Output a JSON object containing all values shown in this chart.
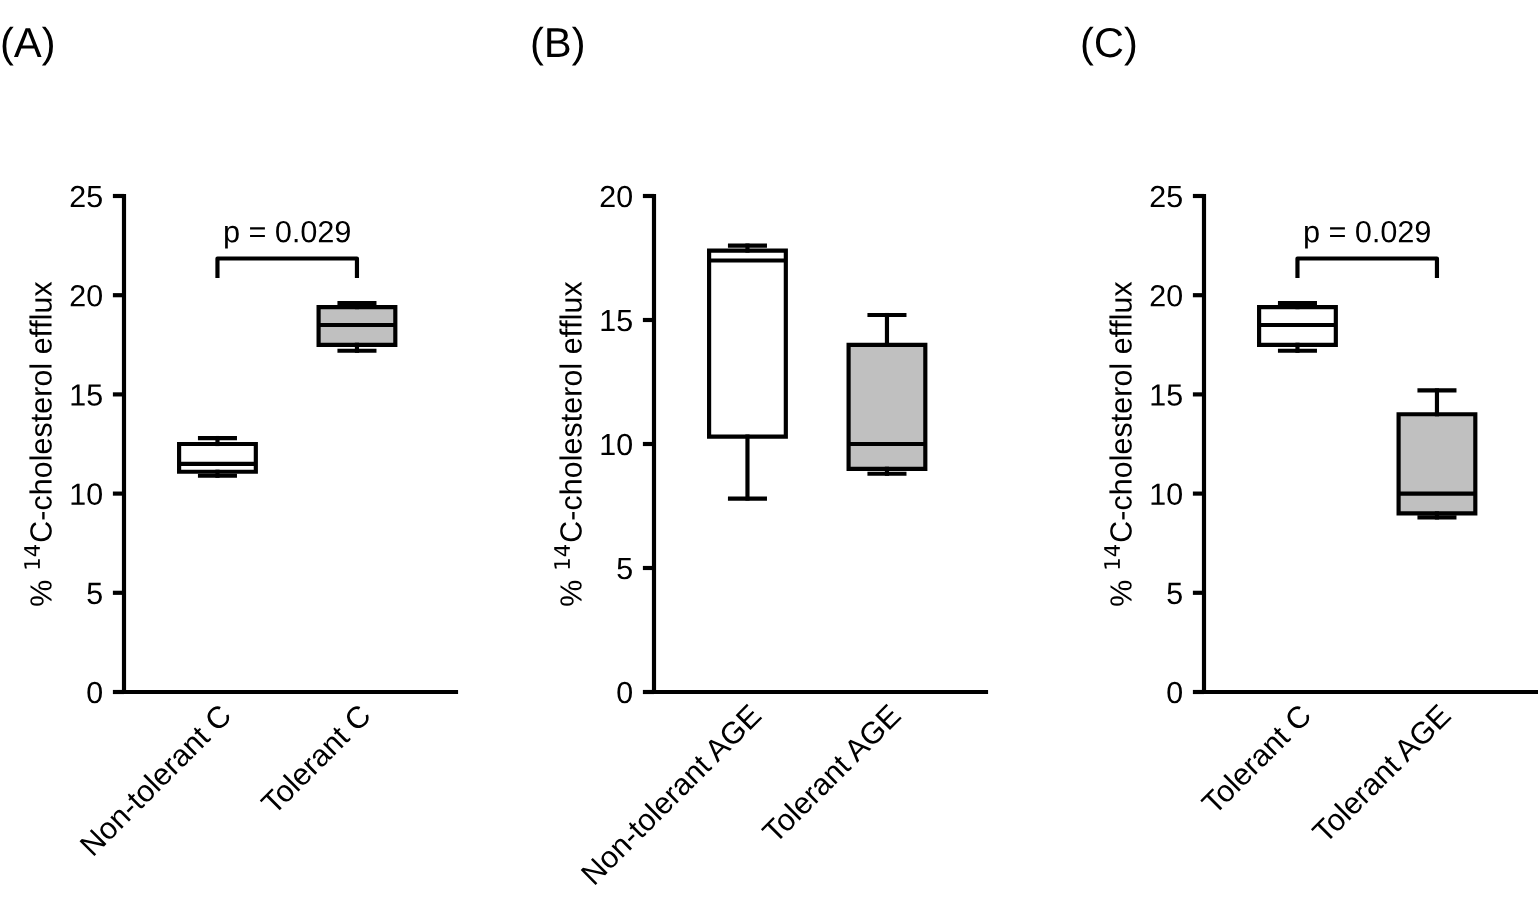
{
  "chart_data": [
    {
      "type": "box",
      "title": "(A)",
      "ylabel": "% $^{14}$C-cholesterol efflux",
      "categories": [
        "Non-tolerant C",
        "Tolerant C"
      ],
      "ylim": [
        0,
        25
      ],
      "yticks": [
        0,
        5,
        10,
        15,
        20,
        25
      ],
      "colors": [
        "#ffffff",
        "#c0c0c0"
      ],
      "boxes": [
        {
          "low": 10.9,
          "q1": 11.1,
          "median": 11.5,
          "q3": 12.5,
          "high": 12.8
        },
        {
          "low": 17.2,
          "q1": 17.5,
          "median": 18.5,
          "q3": 19.4,
          "high": 19.6
        }
      ],
      "annotations": [
        "p = 0.029"
      ]
    },
    {
      "type": "box",
      "title": "(B)",
      "ylabel": "% $^{14}$C-cholesterol efflux",
      "categories": [
        "Non-tolerant AGE",
        "Tolerant AGE"
      ],
      "ylim": [
        0,
        20
      ],
      "yticks": [
        0,
        5,
        10,
        15,
        20
      ],
      "colors": [
        "#ffffff",
        "#c0c0c0"
      ],
      "boxes": [
        {
          "low": 7.8,
          "q1": 10.3,
          "median": 17.4,
          "q3": 17.8,
          "high": 18.0
        },
        {
          "low": 8.8,
          "q1": 9.0,
          "median": 10.0,
          "q3": 14.0,
          "high": 15.2
        }
      ]
    },
    {
      "type": "box",
      "title": "(C)",
      "ylabel": "% $^{14}$C-cholesterol efflux",
      "categories": [
        "Tolerant C",
        "Tolerant AGE"
      ],
      "ylim": [
        0,
        25
      ],
      "yticks": [
        0,
        5,
        10,
        15,
        20,
        25
      ],
      "colors": [
        "#ffffff",
        "#c0c0c0"
      ],
      "boxes": [
        {
          "low": 17.2,
          "q1": 17.5,
          "median": 18.5,
          "q3": 19.4,
          "high": 19.6
        },
        {
          "low": 8.8,
          "q1": 9.0,
          "median": 10.0,
          "q3": 14.0,
          "high": 15.2
        }
      ],
      "annotations": [
        "p = 0.029"
      ]
    }
  ]
}
